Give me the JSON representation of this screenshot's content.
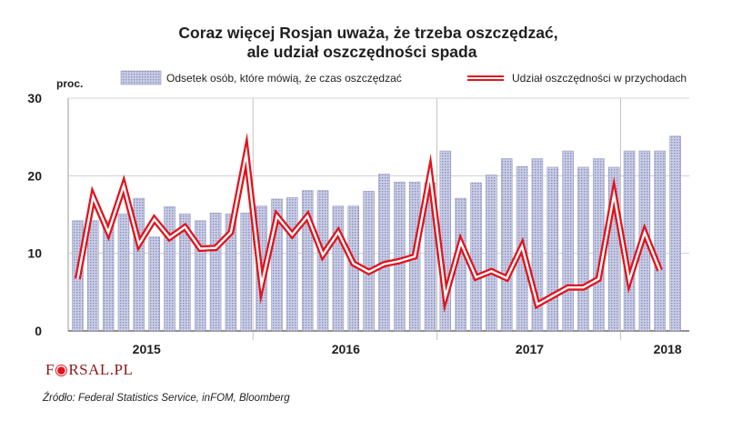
{
  "chart_data": {
    "type": "bar+line",
    "title_lines": [
      "Coraz więcej Rosjan uważa, że trzeba oszczędzać,",
      "ale udział oszczędności spada"
    ],
    "unit_label": "proc.",
    "ylim": [
      0,
      30
    ],
    "yticks": [
      0,
      10,
      20,
      30
    ],
    "grid": "horizontal",
    "year_labels": [
      {
        "label": "2015",
        "index": 5
      },
      {
        "label": "2016",
        "index": 18
      },
      {
        "label": "2017",
        "index": 30
      },
      {
        "label": "2018",
        "index": 39
      }
    ],
    "year_dividers": [
      12,
      24,
      36
    ],
    "series": [
      {
        "name": "Odsetek osób, które mówią, że czas oszczędzać",
        "type": "bar",
        "color": "#b9bfdc",
        "values": [
          14.2,
          14.2,
          14.2,
          15.1,
          17.1,
          12.1,
          16.0,
          15.1,
          14.2,
          15.2,
          15.1,
          15.2,
          16.1,
          17.0,
          17.2,
          18.1,
          18.1,
          16.1,
          16.1,
          18.0,
          20.2,
          19.2,
          19.2,
          19.1,
          23.2,
          17.1,
          19.1,
          20.1,
          22.2,
          21.2,
          22.2,
          21.1,
          23.2,
          21.1,
          22.2,
          21.1,
          23.2,
          23.2,
          23.2,
          25.1
        ]
      },
      {
        "name": "Udział oszczędności w przychodach",
        "type": "line",
        "color": "#e0141e",
        "values": [
          6.7,
          17.3,
          12.7,
          18.7,
          11.2,
          14.4,
          12.0,
          13.4,
          10.6,
          10.7,
          12.7,
          22.9,
          5.9,
          14.8,
          12.4,
          14.8,
          9.8,
          12.7,
          8.7,
          7.6,
          8.6,
          9.0,
          9.6,
          20.2,
          4.4,
          11.4,
          6.9,
          7.7,
          6.8,
          10.9,
          3.4,
          4.5,
          5.6,
          5.6,
          6.7,
          17.6,
          6.5,
          12.7,
          7.8
        ]
      }
    ]
  },
  "source": "Źródło: Federal Statistics Service, inFOM, Bloomberg",
  "logo": {
    "prefix": "F",
    "rest": "RSAL.PL"
  }
}
